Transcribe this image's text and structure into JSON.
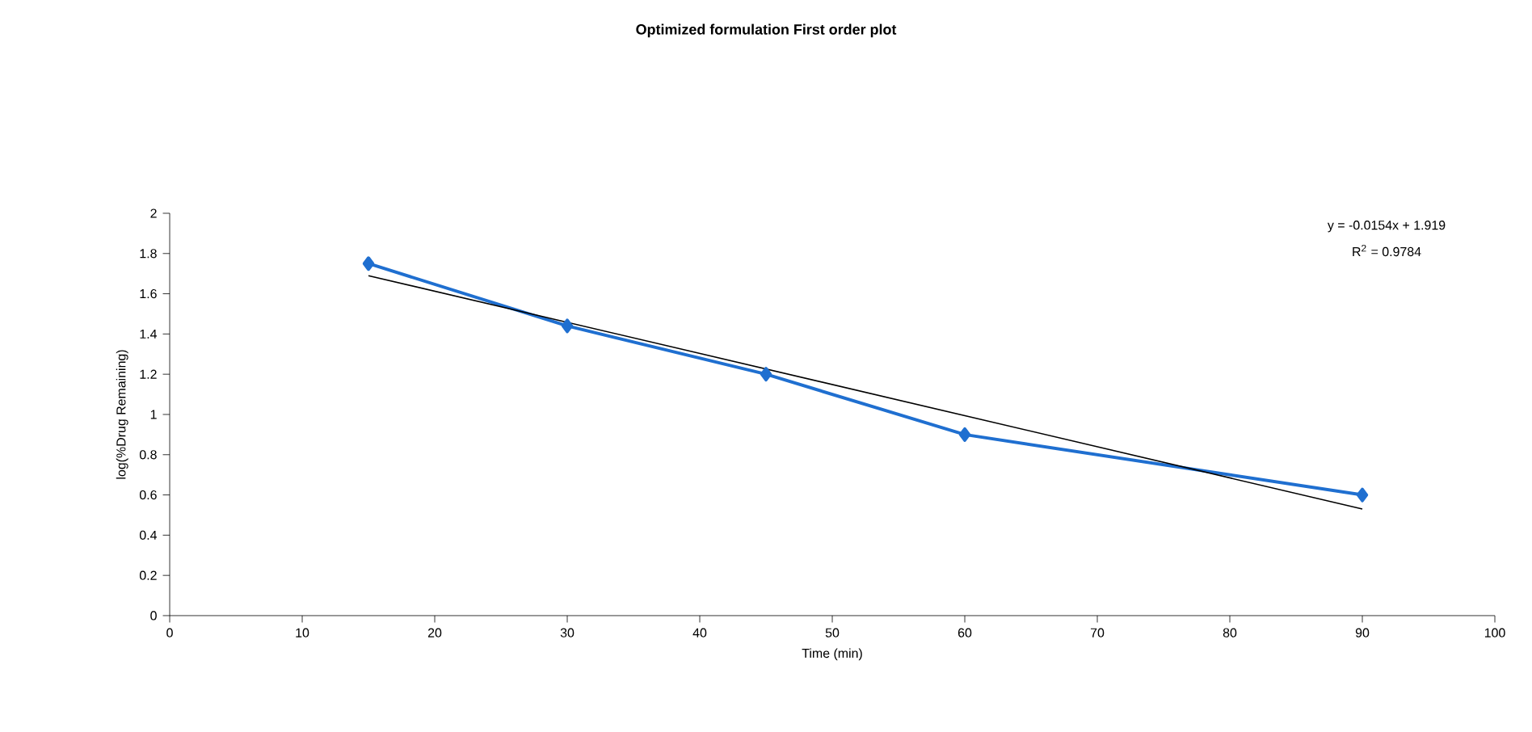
{
  "chart_data": {
    "type": "line",
    "title": "Optimized formulation First order plot",
    "xlabel": "Time (min)",
    "ylabel": "log(%Drug Remaining)",
    "x": [
      15,
      30,
      45,
      60,
      90
    ],
    "series": [
      {
        "color": "#1f6fd0",
        "values": [
          1.75,
          1.44,
          1.2,
          0.9,
          0.6
        ],
        "marker": "diamond"
      },
      {
        "type": "line",
        "color": "#000000",
        "x": [
          15,
          90
        ],
        "values": [
          1.69,
          0.53
        ],
        "marker": "none"
      }
    ],
    "annotations": [
      "y = -0.0154x + 1.919",
      "R$^{2}$ = 0.9784"
    ],
    "xlim": [
      0,
      100
    ],
    "xticks": [
      0,
      10,
      20,
      30,
      40,
      50,
      60,
      70,
      80,
      90,
      100
    ],
    "ylim": [
      0,
      2
    ],
    "yticks": [
      0,
      0.2,
      0.4,
      0.6,
      0.8,
      1,
      1.2,
      1.4,
      1.6,
      1.8,
      2
    ],
    "grid": false
  }
}
